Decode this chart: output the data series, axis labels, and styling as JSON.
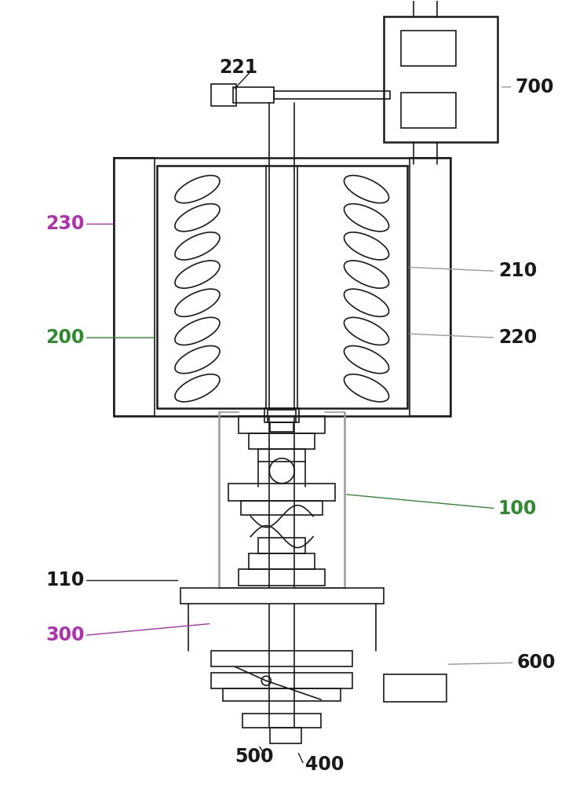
{
  "bg_color": "#ffffff",
  "line_color": "#1a1a1a",
  "gray_line": "#999999",
  "green_line": "#2e8b2e",
  "magenta_line": "#b030b0",
  "figsize": [
    7.2,
    10.0
  ],
  "dpi": 100
}
